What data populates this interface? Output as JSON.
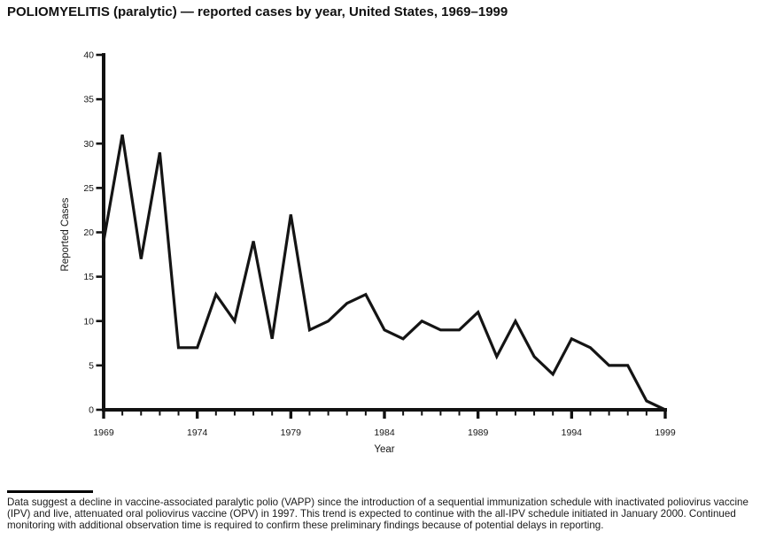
{
  "page": {
    "title": "POLIOMYELITIS (paralytic) — reported cases by year, United States, 1969–1999",
    "footnote": "Data suggest a decline in vaccine-associated paralytic polio (VAPP) since the introduction of a sequential immunization schedule with inactivated poliovirus vaccine (IPV) and live, attenuated oral poliovirus vaccine (OPV) in 1997. This trend is expected to continue with the all-IPV schedule initiated in January 2000. Continued monitoring with additional observation time is required to confirm these preliminary findings because of potential delays in reporting."
  },
  "chart_data": {
    "type": "line",
    "title": "POLIOMYELITIS (paralytic) — reported cases by year, United States, 1969–1999",
    "xlabel": "Year",
    "ylabel": "Reported Cases",
    "x": [
      1969,
      1970,
      1971,
      1972,
      1973,
      1974,
      1975,
      1976,
      1977,
      1978,
      1979,
      1980,
      1981,
      1982,
      1983,
      1984,
      1985,
      1986,
      1987,
      1988,
      1989,
      1990,
      1991,
      1992,
      1993,
      1994,
      1995,
      1996,
      1997,
      1998,
      1999
    ],
    "values": [
      19,
      31,
      17,
      29,
      7,
      7,
      13,
      10,
      19,
      8,
      22,
      9,
      10,
      12,
      13,
      9,
      8,
      10,
      9,
      9,
      11,
      6,
      10,
      6,
      4,
      8,
      7,
      5,
      5,
      1,
      0
    ],
    "ylim": [
      0,
      40
    ],
    "yticks": [
      0,
      5,
      10,
      15,
      20,
      25,
      30,
      35,
      40
    ],
    "xticks_labeled": [
      1969,
      1974,
      1979,
      1984,
      1989,
      1994,
      1999
    ],
    "grid": false,
    "legend": null,
    "line_color": "#141414",
    "axis_color": "#111111"
  }
}
